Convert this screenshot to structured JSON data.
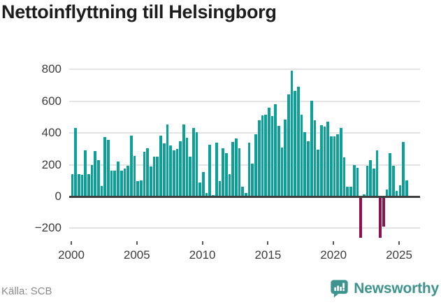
{
  "title": "Nettoinflyttning till Helsingborg",
  "source": "Källa: SCB",
  "branding": {
    "name": "Newsworthy",
    "icon": "newsworthy-bubble-chart-icon"
  },
  "colors": {
    "bar_positive": "#0ba198",
    "bar_negative": "#90104d",
    "brand_teal": "#3d938d",
    "grid": "#e3e3e3",
    "zero_line": "#3f3f3f",
    "title_text": "#1d1d1d",
    "axis_text": "#3c3c3c",
    "tick_mark": "#555555",
    "source_text": "#8a8a8a"
  },
  "chart_data": {
    "type": "bar",
    "title": "Nettoinflyttning till Helsingborg",
    "frequency": "quarterly",
    "x_start": {
      "year": 2000,
      "quarter": 1
    },
    "x_end": {
      "year": 2025,
      "quarter": 3
    },
    "ylim": [
      -300,
      850
    ],
    "y_ticks": [
      800,
      600,
      400,
      200,
      0,
      -200
    ],
    "y_tick_labels": [
      "800",
      "600",
      "400",
      "200",
      "0",
      "−200"
    ],
    "x_ticks": [
      2000,
      2005,
      2010,
      2015,
      2020,
      2025
    ],
    "grid": true,
    "legend": "none",
    "values": [
      140,
      430,
      140,
      135,
      290,
      140,
      200,
      285,
      230,
      65,
      375,
      355,
      165,
      165,
      220,
      165,
      175,
      195,
      385,
      255,
      95,
      100,
      280,
      305,
      190,
      250,
      250,
      385,
      335,
      455,
      320,
      290,
      300,
      350,
      455,
      370,
      250,
      430,
      405,
      90,
      155,
      20,
      325,
      10,
      340,
      95,
      305,
      275,
      140,
      345,
      365,
      305,
      60,
      20,
      340,
      205,
      390,
      480,
      510,
      515,
      560,
      505,
      580,
      445,
      310,
      485,
      645,
      795,
      665,
      690,
      515,
      405,
      350,
      605,
      480,
      295,
      450,
      440,
      470,
      380,
      380,
      390,
      430,
      245,
      60,
      60,
      200,
      180,
      -260,
      15,
      195,
      230,
      175,
      290,
      -260,
      -190,
      45,
      275,
      195,
      35,
      70,
      345,
      100
    ]
  }
}
